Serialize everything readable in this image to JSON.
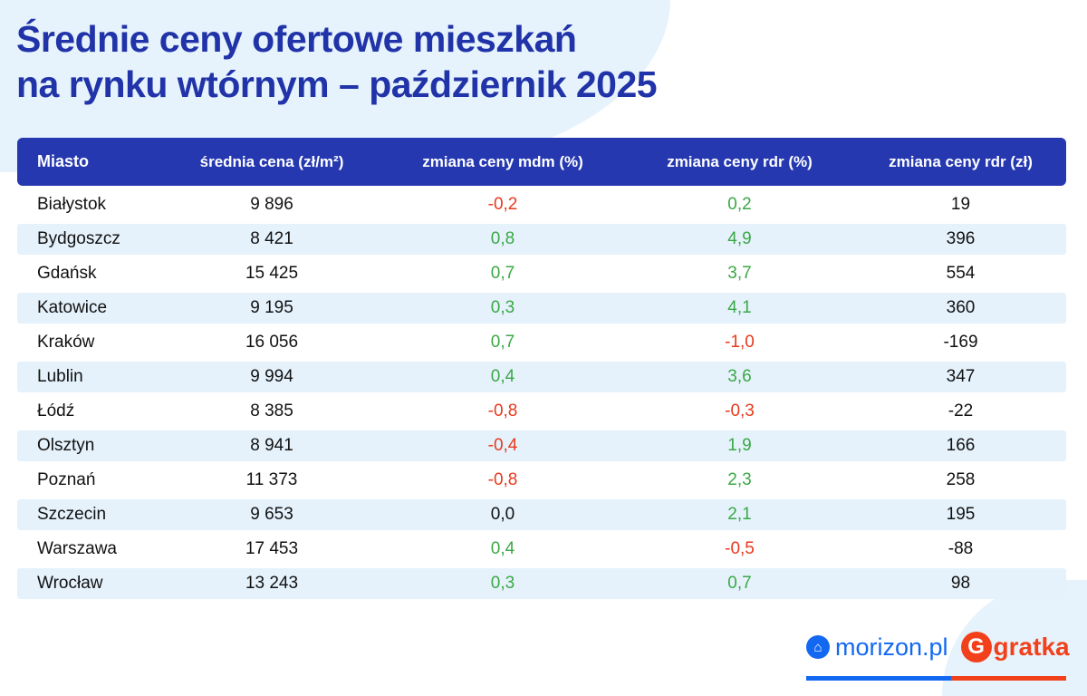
{
  "title": [
    "Średnie ceny ofertowe mieszkań",
    "na rynku wtórnym – październik 2025"
  ],
  "columns": [
    "Miasto",
    "średnia cena (zł/m²)",
    "zmiana ceny mdm (%)",
    "zmiana ceny rdr (%)",
    "zmiana ceny rdr (zł)"
  ],
  "rows": [
    [
      "Białystok",
      "9 896",
      "-0,2",
      "0,2",
      "19"
    ],
    [
      "Bydgoszcz",
      "8 421",
      "0,8",
      "4,9",
      "396"
    ],
    [
      "Gdańsk",
      "15 425",
      "0,7",
      "3,7",
      "554"
    ],
    [
      "Katowice",
      "9 195",
      "0,3",
      "4,1",
      "360"
    ],
    [
      "Kraków",
      "16 056",
      "0,7",
      "-1,0",
      "-169"
    ],
    [
      "Lublin",
      "9 994",
      "0,4",
      "3,6",
      "347"
    ],
    [
      "Łódź",
      "8 385",
      "-0,8",
      "-0,3",
      "-22"
    ],
    [
      "Olsztyn",
      "8 941",
      "-0,4",
      "1,9",
      "166"
    ],
    [
      "Poznań",
      "11 373",
      "-0,8",
      "2,3",
      "258"
    ],
    [
      "Szczecin",
      "9 653",
      "0,0",
      "2,1",
      "195"
    ],
    [
      "Warszawa",
      "17 453",
      "0,4",
      "-0,5",
      "-88"
    ],
    [
      "Wrocław",
      "13 243",
      "0,3",
      "0,7",
      "98"
    ]
  ],
  "logos": {
    "morizon": "morizon.pl",
    "gratka": "gratka"
  },
  "colors": {
    "header": "#2538b0",
    "negative": "#e8391e",
    "positive": "#3aa845",
    "morizon": "#1368f2",
    "gratka": "#f2401b"
  }
}
